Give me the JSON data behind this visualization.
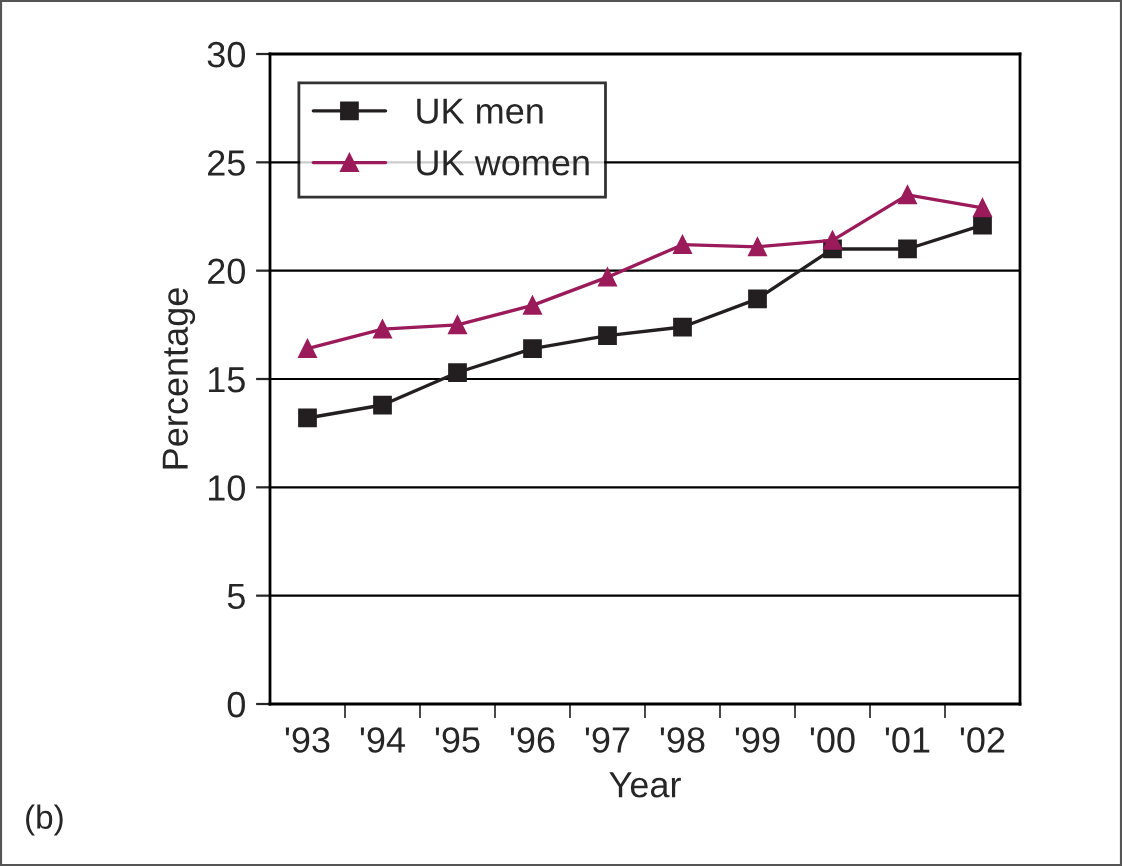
{
  "chart_data": {
    "type": "line",
    "xlabel": "Year",
    "ylabel": "Percentage",
    "categories": [
      "'93",
      "'94",
      "'95",
      "'96",
      "'97",
      "'98",
      "'99",
      "'00",
      "'01",
      "'02"
    ],
    "series": [
      {
        "name": "UK men",
        "color": "#231f20",
        "marker": "square",
        "values": [
          13.2,
          13.8,
          15.3,
          16.4,
          17.0,
          17.4,
          18.7,
          21.0,
          21.0,
          22.1
        ]
      },
      {
        "name": "UK women",
        "color": "#9b1b5a",
        "marker": "triangle",
        "values": [
          16.4,
          17.3,
          17.5,
          18.4,
          19.7,
          21.2,
          21.1,
          21.4,
          23.5,
          22.9
        ]
      }
    ],
    "ylim": [
      0,
      30
    ],
    "yticks": [
      0,
      5,
      10,
      15,
      20,
      25,
      30
    ],
    "grid": "y",
    "legend": "top left",
    "annotations": [
      "(b)"
    ]
  }
}
